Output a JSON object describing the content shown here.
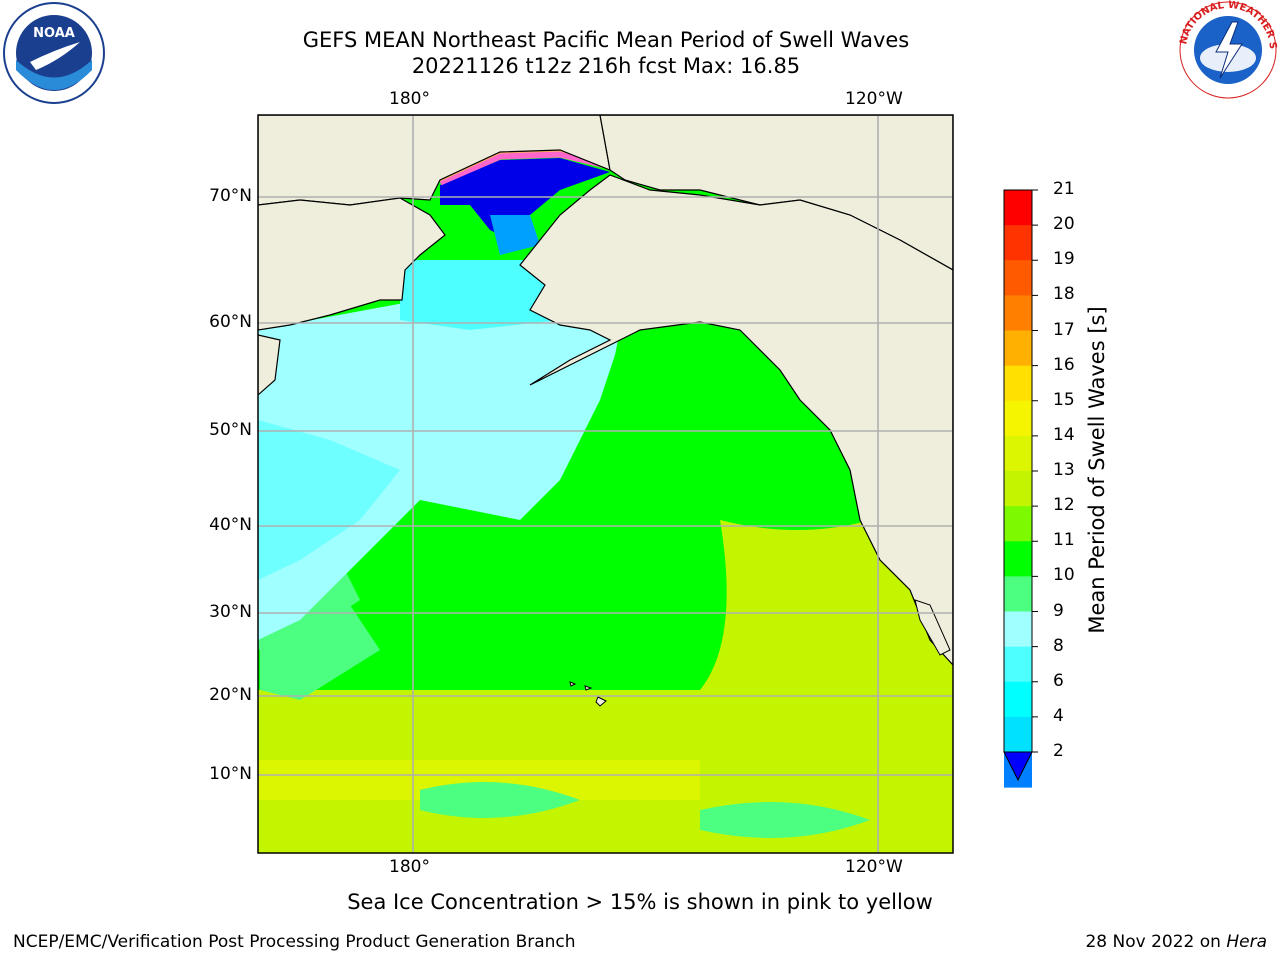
{
  "title": {
    "line1": "GEFS MEAN Northeast Pacific Mean Period of Swell Waves",
    "line2": "20221126 t12z 216h fcst   Max: 16.85"
  },
  "axes": {
    "lon_top": [
      "180°",
      "120°W"
    ],
    "lon_bottom": [
      "180°",
      "120°W"
    ],
    "lat": [
      "70°N",
      "60°N",
      "50°N",
      "40°N",
      "30°N",
      "20°N",
      "10°N"
    ]
  },
  "colorbar": {
    "title": "Mean Period of Swell Waves [s]",
    "ticks": [
      "21",
      "20",
      "19",
      "18",
      "17",
      "16",
      "15",
      "14",
      "13",
      "12",
      "11",
      "10",
      "9",
      "8",
      "6",
      "4",
      "2"
    ],
    "colors": [
      "#ff0000",
      "#ff3300",
      "#ff5a00",
      "#ff8000",
      "#ffb000",
      "#ffe000",
      "#f5f500",
      "#dcf500",
      "#c4f500",
      "#7dfa00",
      "#00ff00",
      "#4dff80",
      "#a0ffff",
      "#4dffff",
      "#00ffff",
      "#00e0ff",
      "#0080ff"
    ],
    "extend_color": "#0000ff"
  },
  "map": {
    "land_color": "#efeedd",
    "grid_color": "#b0b0b0"
  },
  "footnote": "Sea Ice Concentration > 15% is shown in pink to yellow",
  "credit_left": "NCEP/EMC/Verification Post Processing Product Generation Branch",
  "credit_right_date": "28 Nov 2022 on",
  "credit_right_system": "Hera",
  "logos": {
    "noaa_text": "NOAA",
    "nws_ring_text": "NATIONAL WEATHER SERVICE",
    "noaa_icon": "noaa-logo-icon",
    "nws_icon": "nws-logo-icon"
  }
}
